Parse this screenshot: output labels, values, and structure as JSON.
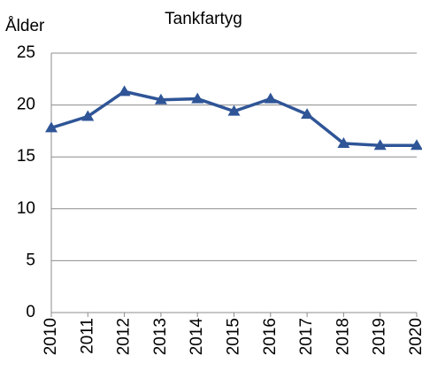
{
  "chart_data": {
    "type": "line",
    "title": "Tankfartyg",
    "ylabel": "Ålder",
    "categories": [
      "2010",
      "2011",
      "2012",
      "2013",
      "2014",
      "2015",
      "2016",
      "2017",
      "2018",
      "2019",
      "2020"
    ],
    "series": [
      {
        "name": "Tankfartyg",
        "color": "#2f5597",
        "values": [
          17.8,
          18.9,
          21.3,
          20.5,
          20.6,
          19.4,
          20.6,
          19.1,
          16.3,
          16.1,
          16.1
        ]
      }
    ],
    "ylim": [
      0,
      25
    ],
    "yticks": [
      0,
      5,
      10,
      15,
      20,
      25
    ],
    "grid": true
  }
}
